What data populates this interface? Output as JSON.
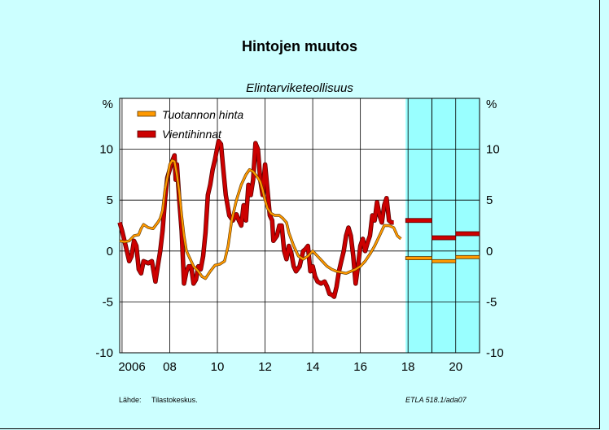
{
  "chart_data": {
    "type": "line",
    "title": "Hintojen muutos",
    "subtitle": "Elintarviketeollisuus",
    "ylabel_left": "%",
    "ylabel_right": "%",
    "ylim": [
      -10,
      15
    ],
    "yticks": [
      -10,
      -5,
      0,
      5,
      10
    ],
    "xlim": [
      2005.9,
      2021.0
    ],
    "xticks": [
      {
        "label": "2006",
        "x": 2006
      },
      {
        "label": "08",
        "x": 2008
      },
      {
        "label": "10",
        "x": 2010
      },
      {
        "label": "12",
        "x": 2012
      },
      {
        "label": "14",
        "x": 2014
      },
      {
        "label": "16",
        "x": 2016
      },
      {
        "label": "18",
        "x": 2018
      },
      {
        "label": "20",
        "x": 2020
      }
    ],
    "gridlines_x": [
      2006,
      2008,
      2010,
      2012,
      2014,
      2016,
      2018,
      2020
    ],
    "gridlines_y": [
      -10,
      -5,
      0,
      5,
      10
    ],
    "forecast_shading": {
      "from": 2017.9,
      "to": 2021.0,
      "color": "#99ffff",
      "divider": 2019
    },
    "legend": {
      "placement": "top-left"
    },
    "series": [
      {
        "name": "Tuotannon hinta",
        "color": "#ff9900",
        "points": [
          [
            2005.9,
            1.0
          ],
          [
            2006.1,
            0.9
          ],
          [
            2006.3,
            1.0
          ],
          [
            2006.5,
            1.5
          ],
          [
            2006.7,
            1.6
          ],
          [
            2006.8,
            2.2
          ],
          [
            2006.9,
            2.6
          ],
          [
            2007.1,
            2.3
          ],
          [
            2007.3,
            2.2
          ],
          [
            2007.5,
            2.8
          ],
          [
            2007.6,
            3.2
          ],
          [
            2007.7,
            4.0
          ],
          [
            2007.8,
            6.0
          ],
          [
            2007.9,
            7.2
          ],
          [
            2008.0,
            8.5
          ],
          [
            2008.1,
            8.9
          ],
          [
            2008.2,
            8.8
          ],
          [
            2008.3,
            7.5
          ],
          [
            2008.4,
            5.8
          ],
          [
            2008.5,
            3.5
          ],
          [
            2008.6,
            1.5
          ],
          [
            2008.7,
            0.0
          ],
          [
            2008.9,
            -1.0
          ],
          [
            2009.0,
            -1.5
          ],
          [
            2009.2,
            -2.0
          ],
          [
            2009.35,
            -2.5
          ],
          [
            2009.5,
            -2.7
          ],
          [
            2009.7,
            -2.0
          ],
          [
            2009.9,
            -1.4
          ],
          [
            2010.1,
            -1.3
          ],
          [
            2010.3,
            -1.0
          ],
          [
            2010.45,
            0.5
          ],
          [
            2010.6,
            3.0
          ],
          [
            2010.8,
            5.0
          ],
          [
            2011.0,
            6.5
          ],
          [
            2011.2,
            7.5
          ],
          [
            2011.35,
            8.0
          ],
          [
            2011.5,
            7.8
          ],
          [
            2011.7,
            7.2
          ],
          [
            2011.8,
            6.8
          ],
          [
            2011.9,
            6.0
          ],
          [
            2012.0,
            5.0
          ],
          [
            2012.1,
            4.2
          ],
          [
            2012.25,
            3.7
          ],
          [
            2012.4,
            3.5
          ],
          [
            2012.6,
            3.5
          ],
          [
            2012.75,
            3.2
          ],
          [
            2012.9,
            2.8
          ],
          [
            2013.0,
            1.8
          ],
          [
            2013.2,
            0.5
          ],
          [
            2013.4,
            -0.5
          ],
          [
            2013.6,
            -0.8
          ],
          [
            2013.8,
            -0.5
          ],
          [
            2014.0,
            0.0
          ],
          [
            2014.2,
            -0.5
          ],
          [
            2014.4,
            -1.0
          ],
          [
            2014.6,
            -1.5
          ],
          [
            2014.8,
            -1.8
          ],
          [
            2015.0,
            -2.0
          ],
          [
            2015.2,
            -2.1
          ],
          [
            2015.4,
            -2.2
          ],
          [
            2015.6,
            -2.0
          ],
          [
            2015.8,
            -1.8
          ],
          [
            2016.0,
            -1.5
          ],
          [
            2016.2,
            -1.0
          ],
          [
            2016.4,
            -0.3
          ],
          [
            2016.6,
            0.5
          ],
          [
            2016.8,
            1.5
          ],
          [
            2017.0,
            2.5
          ],
          [
            2017.2,
            2.5
          ],
          [
            2017.4,
            2.3
          ],
          [
            2017.55,
            1.5
          ],
          [
            2017.7,
            1.2
          ]
        ],
        "forecast": [
          {
            "from": 2017.9,
            "to": 2019.0,
            "value": -0.7
          },
          {
            "from": 2019.0,
            "to": 2020.0,
            "value": -1.0
          },
          {
            "from": 2020.0,
            "to": 2021.0,
            "value": -0.6
          }
        ]
      },
      {
        "name": "Vientihinnat",
        "color": "#cc0000",
        "points": [
          [
            2005.9,
            2.8
          ],
          [
            2006.0,
            2.0
          ],
          [
            2006.1,
            1.0
          ],
          [
            2006.2,
            0.0
          ],
          [
            2006.3,
            -1.0
          ],
          [
            2006.4,
            -0.5
          ],
          [
            2006.5,
            1.0
          ],
          [
            2006.6,
            0.5
          ],
          [
            2006.7,
            -1.8
          ],
          [
            2006.8,
            -2.2
          ],
          [
            2006.9,
            -1.0
          ],
          [
            2007.1,
            -1.2
          ],
          [
            2007.25,
            -1.0
          ],
          [
            2007.4,
            -3.0
          ],
          [
            2007.5,
            -1.5
          ],
          [
            2007.6,
            0.0
          ],
          [
            2007.7,
            2.0
          ],
          [
            2007.8,
            5.0
          ],
          [
            2007.9,
            7.2
          ],
          [
            2008.0,
            8.0
          ],
          [
            2008.1,
            8.8
          ],
          [
            2008.2,
            9.4
          ],
          [
            2008.25,
            7.0
          ],
          [
            2008.3,
            8.5
          ],
          [
            2008.4,
            5.0
          ],
          [
            2008.5,
            2.0
          ],
          [
            2008.6,
            -3.2
          ],
          [
            2008.7,
            -2.0
          ],
          [
            2008.8,
            -1.5
          ],
          [
            2008.9,
            -1.5
          ],
          [
            2009.0,
            -3.2
          ],
          [
            2009.1,
            -2.8
          ],
          [
            2009.2,
            -1.5
          ],
          [
            2009.3,
            -1.8
          ],
          [
            2009.4,
            -0.5
          ],
          [
            2009.5,
            1.8
          ],
          [
            2009.6,
            5.5
          ],
          [
            2009.7,
            6.5
          ],
          [
            2009.8,
            8.0
          ],
          [
            2009.9,
            9.0
          ],
          [
            2010.0,
            10.2
          ],
          [
            2010.05,
            10.8
          ],
          [
            2010.15,
            10.5
          ],
          [
            2010.25,
            8.0
          ],
          [
            2010.35,
            5.5
          ],
          [
            2010.5,
            3.5
          ],
          [
            2010.65,
            3.0
          ],
          [
            2010.8,
            3.6
          ],
          [
            2010.9,
            3.0
          ],
          [
            2011.0,
            2.5
          ],
          [
            2011.1,
            4.5
          ],
          [
            2011.2,
            3.0
          ],
          [
            2011.3,
            6.5
          ],
          [
            2011.4,
            5.5
          ],
          [
            2011.5,
            7.0
          ],
          [
            2011.6,
            10.6
          ],
          [
            2011.7,
            10.0
          ],
          [
            2011.8,
            7.0
          ],
          [
            2011.9,
            5.5
          ],
          [
            2012.0,
            8.5
          ],
          [
            2012.1,
            6.0
          ],
          [
            2012.2,
            3.5
          ],
          [
            2012.3,
            3.0
          ],
          [
            2012.35,
            1.0
          ],
          [
            2012.5,
            1.5
          ],
          [
            2012.6,
            2.5
          ],
          [
            2012.7,
            2.5
          ],
          [
            2012.8,
            0.0
          ],
          [
            2012.9,
            -0.8
          ],
          [
            2013.0,
            0.5
          ],
          [
            2013.1,
            -0.2
          ],
          [
            2013.2,
            -1.5
          ],
          [
            2013.3,
            -2.0
          ],
          [
            2013.45,
            -1.5
          ],
          [
            2013.6,
            0.0
          ],
          [
            2013.7,
            0.2
          ],
          [
            2013.8,
            0.5
          ],
          [
            2013.9,
            -2.0
          ],
          [
            2014.0,
            -1.5
          ],
          [
            2014.1,
            -2.5
          ],
          [
            2014.2,
            -3.0
          ],
          [
            2014.35,
            -3.2
          ],
          [
            2014.5,
            -3.0
          ],
          [
            2014.6,
            -3.5
          ],
          [
            2014.7,
            -4.2
          ],
          [
            2014.8,
            -4.3
          ],
          [
            2014.9,
            -4.5
          ],
          [
            2015.0,
            -3.5
          ],
          [
            2015.1,
            -2.0
          ],
          [
            2015.2,
            -1.0
          ],
          [
            2015.3,
            0.0
          ],
          [
            2015.4,
            1.5
          ],
          [
            2015.5,
            2.3
          ],
          [
            2015.6,
            1.5
          ],
          [
            2015.7,
            -0.5
          ],
          [
            2015.8,
            -3.2
          ],
          [
            2015.9,
            -1.5
          ],
          [
            2016.0,
            0.5
          ],
          [
            2016.1,
            1.2
          ],
          [
            2016.2,
            0.0
          ],
          [
            2016.3,
            0.8
          ],
          [
            2016.4,
            1.5
          ],
          [
            2016.5,
            3.5
          ],
          [
            2016.6,
            3.0
          ],
          [
            2016.7,
            4.8
          ],
          [
            2016.8,
            3.5
          ],
          [
            2016.9,
            2.8
          ],
          [
            2017.0,
            4.5
          ],
          [
            2017.1,
            5.2
          ],
          [
            2017.2,
            3.0
          ],
          [
            2017.3,
            2.8
          ],
          [
            2017.4,
            2.8
          ]
        ],
        "forecast": [
          {
            "from": 2017.9,
            "to": 2019.0,
            "value": 3.0
          },
          {
            "from": 2019.0,
            "to": 2020.0,
            "value": 1.3
          },
          {
            "from": 2020.0,
            "to": 2021.0,
            "value": 1.7
          }
        ]
      }
    ]
  },
  "footer": {
    "source_label": "Lähde:",
    "source_value": "Tilastokeskus.",
    "code": "ETLA 518.1/ada07"
  }
}
